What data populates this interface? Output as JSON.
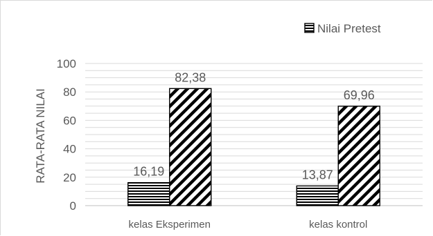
{
  "chart_data": {
    "type": "bar",
    "title": "",
    "xlabel": "",
    "ylabel": "RATA-RATA NILAI",
    "ylim": [
      0,
      100
    ],
    "yticks": [
      0,
      20,
      40,
      60,
      80,
      100
    ],
    "grid": true,
    "legend_position": "top-right",
    "categories": [
      "kelas Eksperimen",
      "kelas kontrol"
    ],
    "series": [
      {
        "name": "Nilai Pretest",
        "pattern": "horizontal-lines",
        "values": [
          16.19,
          13.87
        ],
        "labels": [
          "16,19",
          "13,87"
        ]
      },
      {
        "pattern": "diagonal-lines",
        "values": [
          82.38,
          69.96
        ],
        "labels": [
          "82,38",
          "69,96"
        ]
      }
    ],
    "legend": [
      "Nilai Pretest"
    ]
  }
}
